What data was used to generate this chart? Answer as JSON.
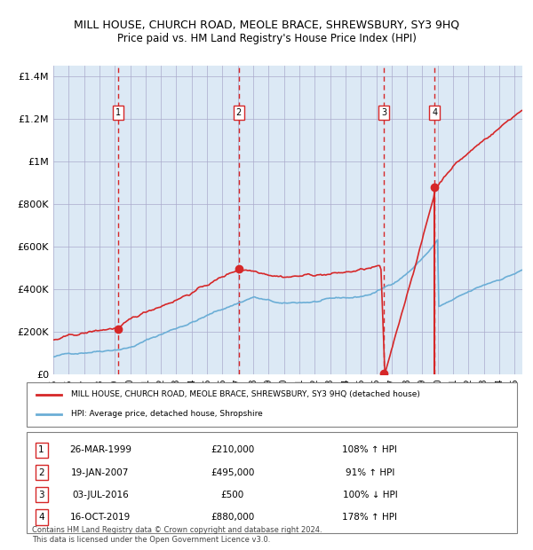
{
  "title": "MILL HOUSE, CHURCH ROAD, MEOLE BRACE, SHREWSBURY, SY3 9HQ",
  "subtitle": "Price paid vs. HM Land Registry's House Price Index (HPI)",
  "hpi_color": "#6baed6",
  "price_color": "#d62728",
  "background_color": "#dce9f5",
  "plot_bg": "#dce9f5",
  "ylim": [
    0,
    1450000
  ],
  "xlim_start": 1995.0,
  "xlim_end": 2025.5,
  "sales": [
    {
      "num": 1,
      "date": "26-MAR-1999",
      "price": 210000,
      "year": 1999.23,
      "pct": "108% ↑ HPI"
    },
    {
      "num": 2,
      "date": "19-JAN-2007",
      "price": 495000,
      "year": 2007.05,
      "pct": "91% ↑ HPI"
    },
    {
      "num": 3,
      "date": "03-JUL-2016",
      "price": 500,
      "year": 2016.5,
      "pct": "100% ↓ HPI"
    },
    {
      "num": 4,
      "date": "16-OCT-2019",
      "price": 880000,
      "year": 2019.79,
      "pct": "178% ↑ HPI"
    }
  ],
  "legend_line1": "MILL HOUSE, CHURCH ROAD, MEOLE BRACE, SHREWSBURY, SY3 9HQ (detached house)",
  "legend_line2": "HPI: Average price, detached house, Shropshire",
  "footer": "Contains HM Land Registry data © Crown copyright and database right 2024.\nThis data is licensed under the Open Government Licence v3.0.",
  "yticks": [
    0,
    200000,
    400000,
    600000,
    800000,
    1000000,
    1200000,
    1400000
  ],
  "ytick_labels": [
    "£0",
    "£200K",
    "£400K",
    "£600K",
    "£800K",
    "£1M",
    "£1.2M",
    "£1.4M"
  ]
}
